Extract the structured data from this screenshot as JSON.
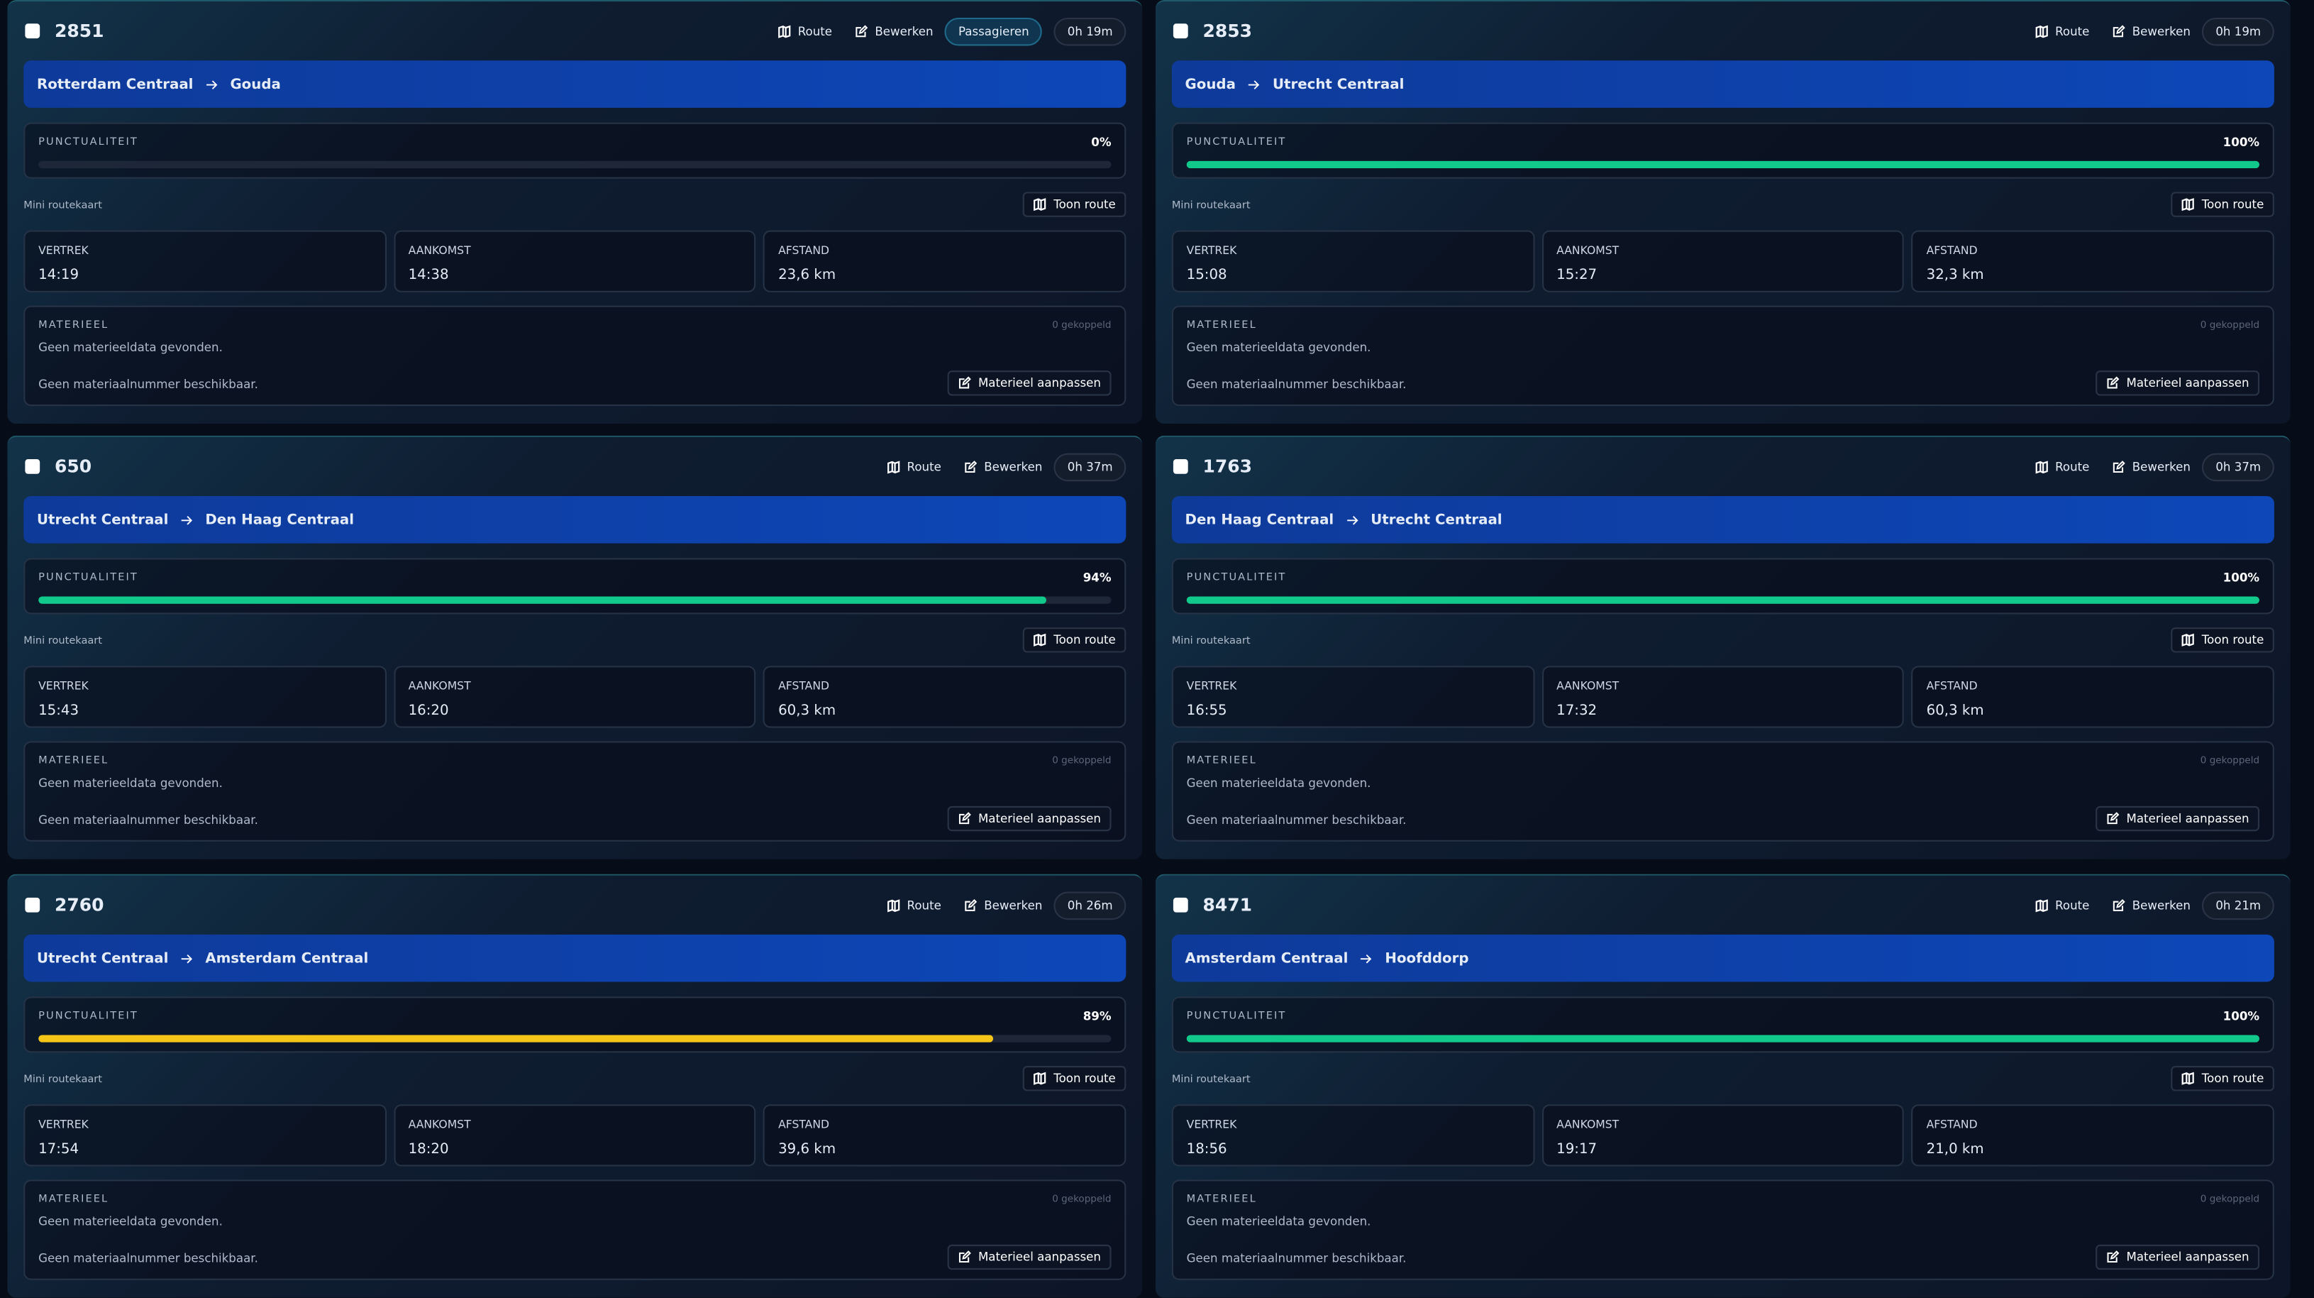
{
  "labels": {
    "route": "Route",
    "edit": "Bewerken",
    "punctuality": "PUNCTUALITEIT",
    "mini_map": "Mini routekaart",
    "show_route": "Toon route",
    "departure": "VERTREK",
    "arrival": "AANKOMST",
    "distance": "AFSTAND",
    "material": "MATERIEEL",
    "coupled": "0 gekoppeld",
    "no_material": "Geen materieeldata gevonden.",
    "no_number": "Geen materiaalnummer beschikbaar.",
    "edit_material": "Materieel aanpassen"
  },
  "cards": [
    {
      "number": "2851",
      "badge": "Passagieren",
      "duration": "0h 19m",
      "from": "Rotterdam Centraal",
      "to": "Gouda",
      "punctuality": 0,
      "punctuality_label": "0%",
      "punctuality_color": "#10c98a",
      "departure": "14:19",
      "arrival": "14:38",
      "distance": "23,6 km"
    },
    {
      "number": "2853",
      "duration": "0h 19m",
      "from": "Gouda",
      "to": "Utrecht Centraal",
      "punctuality": 100,
      "punctuality_label": "100%",
      "punctuality_color": "#10c98a",
      "departure": "15:08",
      "arrival": "15:27",
      "distance": "32,3 km"
    },
    {
      "number": "650",
      "duration": "0h 37m",
      "from": "Utrecht Centraal",
      "to": "Den Haag Centraal",
      "punctuality": 94,
      "punctuality_label": "94%",
      "punctuality_color": "#10c98a",
      "departure": "15:43",
      "arrival": "16:20",
      "distance": "60,3 km"
    },
    {
      "number": "1763",
      "duration": "0h 37m",
      "from": "Den Haag Centraal",
      "to": "Utrecht Centraal",
      "punctuality": 100,
      "punctuality_label": "100%",
      "punctuality_color": "#10c98a",
      "departure": "16:55",
      "arrival": "17:32",
      "distance": "60,3 km"
    },
    {
      "number": "2760",
      "duration": "0h 26m",
      "from": "Utrecht Centraal",
      "to": "Amsterdam Centraal",
      "punctuality": 89,
      "punctuality_label": "89%",
      "punctuality_color": "#f5c518",
      "departure": "17:54",
      "arrival": "18:20",
      "distance": "39,6 km"
    },
    {
      "number": "8471",
      "duration": "0h 21m",
      "from": "Amsterdam Centraal",
      "to": "Hoofddorp",
      "punctuality": 100,
      "punctuality_label": "100%",
      "punctuality_color": "#10c98a",
      "departure": "18:56",
      "arrival": "19:17",
      "distance": "21,0 km"
    }
  ]
}
